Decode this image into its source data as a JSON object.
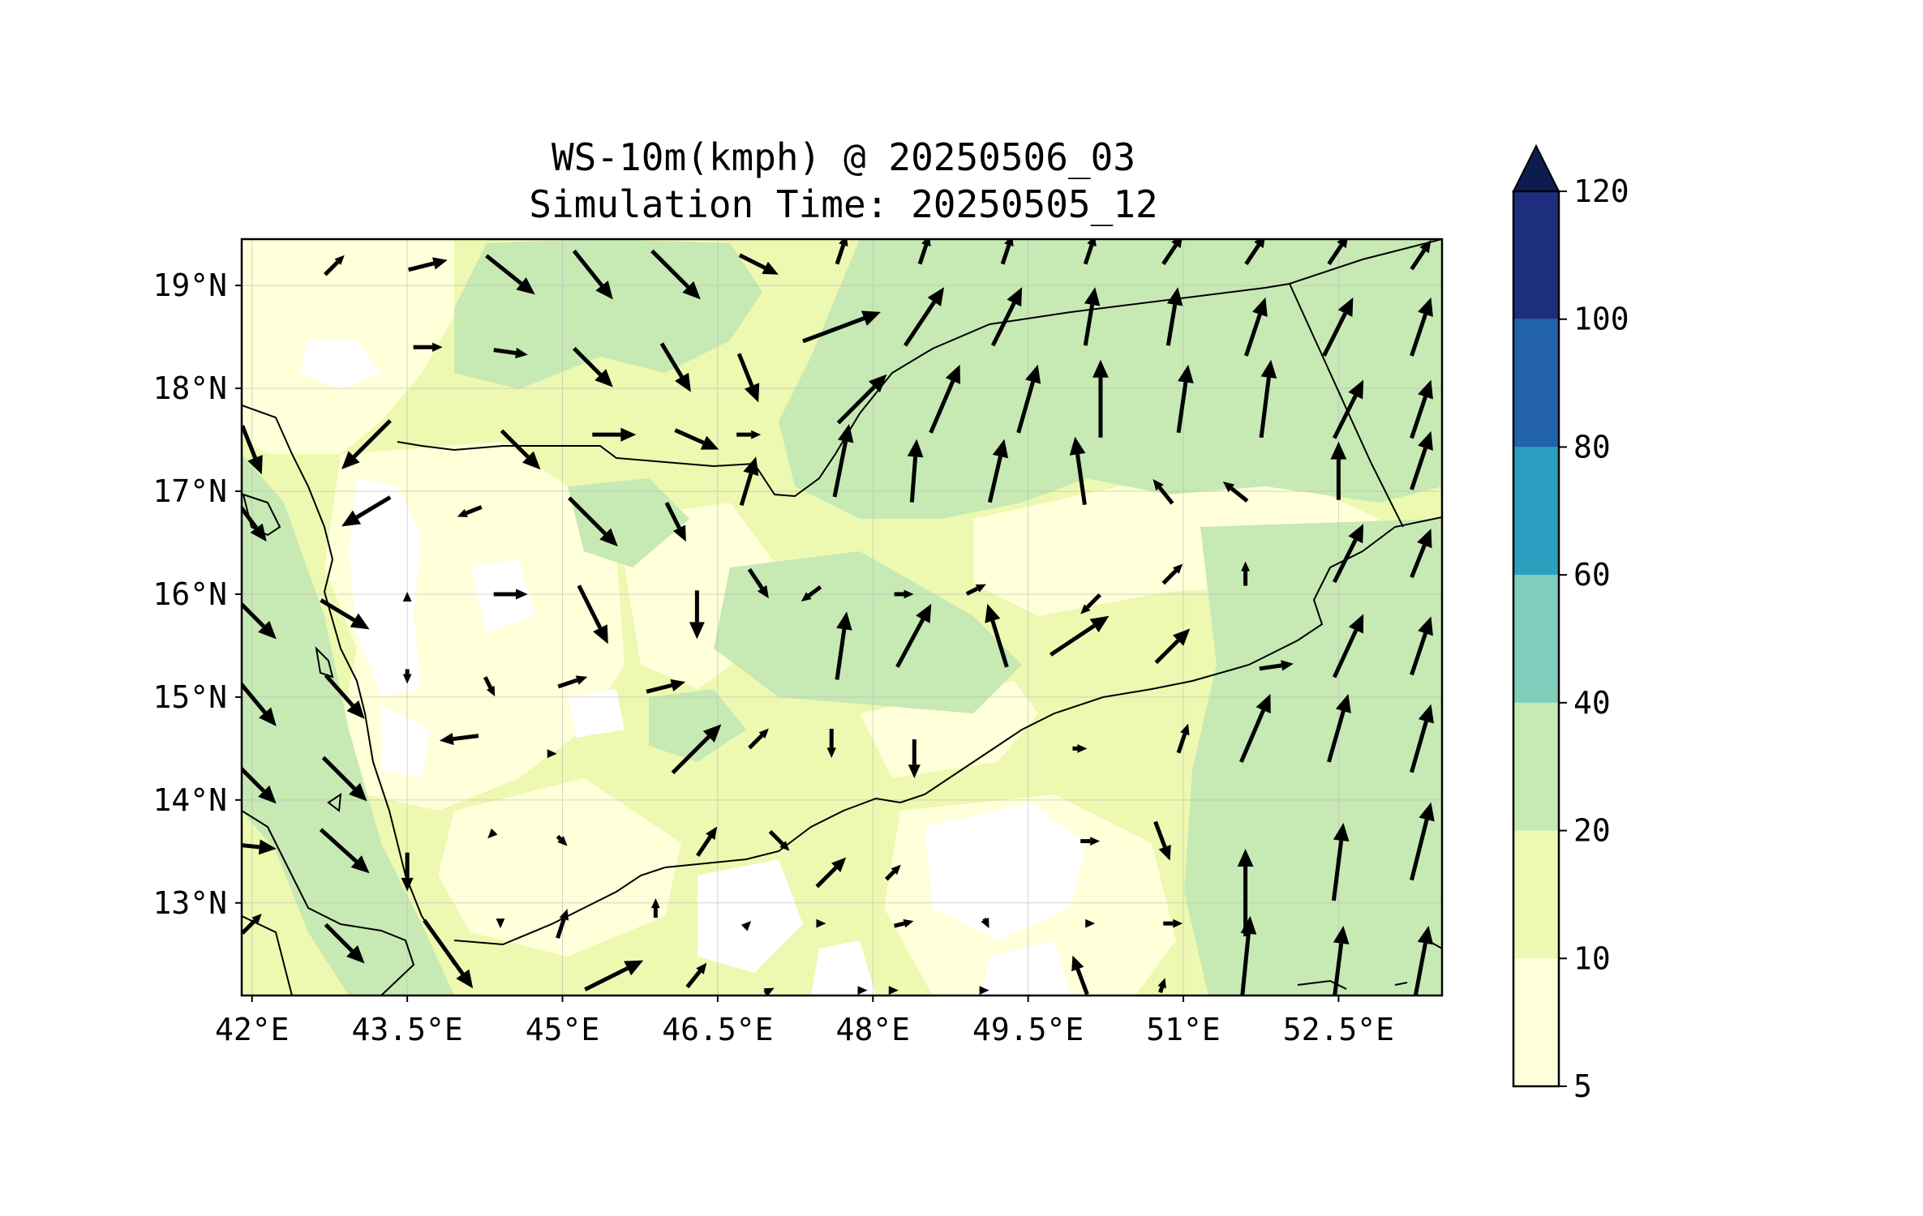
{
  "title": {
    "line1": "WS-10m(kmph) @ 20250506_03",
    "line2": "Simulation Time: 20250505_12"
  },
  "map": {
    "lon_range": [
      41.9,
      53.5
    ],
    "lat_range": [
      12.1,
      19.45
    ],
    "x_ticks": [
      {
        "value": 42.0,
        "label": "42°E"
      },
      {
        "value": 43.5,
        "label": "43.5°E"
      },
      {
        "value": 45.0,
        "label": "45°E"
      },
      {
        "value": 46.5,
        "label": "46.5°E"
      },
      {
        "value": 48.0,
        "label": "48°E"
      },
      {
        "value": 49.5,
        "label": "49.5°E"
      },
      {
        "value": 51.0,
        "label": "51°E"
      },
      {
        "value": 52.5,
        "label": "52.5°E"
      }
    ],
    "y_ticks": [
      {
        "value": 19,
        "label": "19°N"
      },
      {
        "value": 18,
        "label": "18°N"
      },
      {
        "value": 17,
        "label": "17°N"
      },
      {
        "value": 16,
        "label": "16°N"
      },
      {
        "value": 15,
        "label": "15°N"
      },
      {
        "value": 14,
        "label": "14°N"
      },
      {
        "value": 13,
        "label": "13°N"
      }
    ],
    "gridlines": true,
    "colors": {
      "lt10": "#ffffd9",
      "10to20": "#edf8b1",
      "20to40": "#c7e9b4",
      "white": "#ffffff"
    }
  },
  "colorbar": {
    "extend": "max",
    "levels": [
      {
        "from": 5,
        "to": 10,
        "color": "#ffffd9"
      },
      {
        "from": 10,
        "to": 20,
        "color": "#edf8b1"
      },
      {
        "from": 20,
        "to": 40,
        "color": "#c7e9b4"
      },
      {
        "from": 40,
        "to": 60,
        "color": "#7fcdbb"
      },
      {
        "from": 60,
        "to": 80,
        "color": "#2c9fc1"
      },
      {
        "from": 80,
        "to": 100,
        "color": "#2162ab"
      },
      {
        "from": 100,
        "to": 120,
        "color": "#1d2e7f"
      }
    ],
    "extend_color": "#0c1c4e",
    "tick_labels": [
      "5",
      "10",
      "20",
      "40",
      "60",
      "80",
      "100",
      "120"
    ]
  },
  "wind_arrows": [
    {
      "lon": 42.8,
      "lat": 19.2,
      "u": 0.2,
      "v": 0.2
    },
    {
      "lon": 43.7,
      "lat": 19.2,
      "u": 0.4,
      "v": 0.1
    },
    {
      "lon": 44.5,
      "lat": 19.1,
      "u": 0.5,
      "v": -0.4
    },
    {
      "lon": 45.3,
      "lat": 19.1,
      "u": 0.4,
      "v": -0.5
    },
    {
      "lon": 46.1,
      "lat": 19.1,
      "u": 0.5,
      "v": -0.5
    },
    {
      "lon": 46.9,
      "lat": 19.2,
      "u": 0.4,
      "v": -0.2
    },
    {
      "lon": 47.7,
      "lat": 19.35,
      "u": 0.1,
      "v": 0.3
    },
    {
      "lon": 48.5,
      "lat": 19.35,
      "u": 0.1,
      "v": 0.3
    },
    {
      "lon": 49.3,
      "lat": 19.35,
      "u": 0.1,
      "v": 0.3
    },
    {
      "lon": 50.1,
      "lat": 19.35,
      "u": 0.1,
      "v": 0.3
    },
    {
      "lon": 50.9,
      "lat": 19.35,
      "u": 0.2,
      "v": 0.3
    },
    {
      "lon": 51.7,
      "lat": 19.35,
      "u": 0.2,
      "v": 0.3
    },
    {
      "lon": 52.5,
      "lat": 19.35,
      "u": 0.2,
      "v": 0.3
    },
    {
      "lon": 53.3,
      "lat": 19.3,
      "u": 0.2,
      "v": 0.3
    },
    {
      "lon": 43.7,
      "lat": 18.4,
      "u": 0.3,
      "v": 0.0
    },
    {
      "lon": 44.5,
      "lat": 18.35,
      "u": 0.35,
      "v": -0.05
    },
    {
      "lon": 45.3,
      "lat": 18.2,
      "u": 0.4,
      "v": -0.4
    },
    {
      "lon": 46.1,
      "lat": 18.2,
      "u": 0.3,
      "v": -0.5
    },
    {
      "lon": 46.8,
      "lat": 18.1,
      "u": 0.2,
      "v": -0.5
    },
    {
      "lon": 47.7,
      "lat": 18.6,
      "u": 0.8,
      "v": 0.3
    },
    {
      "lon": 48.5,
      "lat": 18.7,
      "u": 0.4,
      "v": 0.6
    },
    {
      "lon": 49.3,
      "lat": 18.7,
      "u": 0.3,
      "v": 0.6
    },
    {
      "lon": 50.1,
      "lat": 18.7,
      "u": 0.1,
      "v": 0.6
    },
    {
      "lon": 50.9,
      "lat": 18.7,
      "u": 0.1,
      "v": 0.6
    },
    {
      "lon": 51.7,
      "lat": 18.6,
      "u": 0.2,
      "v": 0.6
    },
    {
      "lon": 52.5,
      "lat": 18.6,
      "u": 0.3,
      "v": 0.6
    },
    {
      "lon": 53.3,
      "lat": 18.6,
      "u": 0.2,
      "v": 0.6
    },
    {
      "lon": 47.9,
      "lat": 17.9,
      "u": 0.5,
      "v": 0.5
    },
    {
      "lon": 48.7,
      "lat": 17.9,
      "u": 0.3,
      "v": 0.7
    },
    {
      "lon": 49.5,
      "lat": 17.9,
      "u": 0.2,
      "v": 0.7
    },
    {
      "lon": 50.2,
      "lat": 17.9,
      "u": 0.0,
      "v": 0.8
    },
    {
      "lon": 51.0,
      "lat": 17.9,
      "u": 0.1,
      "v": 0.7
    },
    {
      "lon": 51.8,
      "lat": 17.9,
      "u": 0.1,
      "v": 0.8
    },
    {
      "lon": 52.6,
      "lat": 17.8,
      "u": 0.3,
      "v": 0.6
    },
    {
      "lon": 53.3,
      "lat": 17.8,
      "u": 0.2,
      "v": 0.6
    },
    {
      "lon": 42.0,
      "lat": 17.4,
      "u": 0.2,
      "v": -0.5
    },
    {
      "lon": 43.1,
      "lat": 17.45,
      "u": -0.5,
      "v": -0.5
    },
    {
      "lon": 44.6,
      "lat": 17.4,
      "u": 0.4,
      "v": -0.4
    },
    {
      "lon": 45.5,
      "lat": 17.55,
      "u": 0.45,
      "v": 0.0
    },
    {
      "lon": 46.3,
      "lat": 17.5,
      "u": 0.45,
      "v": -0.2
    },
    {
      "lon": 46.8,
      "lat": 17.55,
      "u": 0.25,
      "v": 0.0
    },
    {
      "lon": 42.0,
      "lat": 16.7,
      "u": 0.3,
      "v": -0.4
    },
    {
      "lon": 43.1,
      "lat": 16.8,
      "u": -0.5,
      "v": -0.3
    },
    {
      "lon": 44.1,
      "lat": 16.8,
      "u": -0.25,
      "v": -0.1
    },
    {
      "lon": 45.3,
      "lat": 16.7,
      "u": 0.5,
      "v": -0.5
    },
    {
      "lon": 46.1,
      "lat": 16.7,
      "u": 0.2,
      "v": -0.4
    },
    {
      "lon": 46.8,
      "lat": 17.1,
      "u": 0.15,
      "v": 0.5
    },
    {
      "lon": 47.7,
      "lat": 17.3,
      "u": 0.15,
      "v": 0.75
    },
    {
      "lon": 48.4,
      "lat": 17.2,
      "u": 0.05,
      "v": 0.65
    },
    {
      "lon": 49.2,
      "lat": 17.2,
      "u": 0.15,
      "v": 0.65
    },
    {
      "lon": 50.0,
      "lat": 17.2,
      "u": -0.1,
      "v": 0.7
    },
    {
      "lon": 50.8,
      "lat": 17.0,
      "u": -0.2,
      "v": 0.25
    },
    {
      "lon": 51.5,
      "lat": 17.0,
      "u": -0.25,
      "v": 0.2
    },
    {
      "lon": 52.5,
      "lat": 17.2,
      "u": 0.0,
      "v": 0.6
    },
    {
      "lon": 53.3,
      "lat": 17.3,
      "u": 0.2,
      "v": 0.6
    },
    {
      "lon": 42.0,
      "lat": 15.8,
      "u": 0.5,
      "v": -0.5
    },
    {
      "lon": 42.9,
      "lat": 15.8,
      "u": 0.5,
      "v": -0.3
    },
    {
      "lon": 43.5,
      "lat": 16.0,
      "u": 0.0,
      "v": 0.05
    },
    {
      "lon": 44.5,
      "lat": 16.0,
      "u": 0.35,
      "v": 0.0
    },
    {
      "lon": 45.3,
      "lat": 15.8,
      "u": 0.3,
      "v": -0.6
    },
    {
      "lon": 46.3,
      "lat": 15.8,
      "u": 0.0,
      "v": -0.5
    },
    {
      "lon": 46.9,
      "lat": 16.1,
      "u": 0.2,
      "v": -0.3
    },
    {
      "lon": 47.7,
      "lat": 15.5,
      "u": 0.1,
      "v": 0.7
    },
    {
      "lon": 48.4,
      "lat": 15.6,
      "u": 0.35,
      "v": 0.65
    },
    {
      "lon": 49.2,
      "lat": 15.6,
      "u": -0.2,
      "v": 0.65
    },
    {
      "lon": 50.0,
      "lat": 15.6,
      "u": 0.6,
      "v": 0.4
    },
    {
      "lon": 50.9,
      "lat": 15.5,
      "u": 0.35,
      "v": 0.35
    },
    {
      "lon": 51.9,
      "lat": 15.3,
      "u": 0.35,
      "v": 0.05
    },
    {
      "lon": 52.6,
      "lat": 15.5,
      "u": 0.3,
      "v": 0.65
    },
    {
      "lon": 53.3,
      "lat": 15.5,
      "u": 0.2,
      "v": 0.6
    },
    {
      "lon": 47.4,
      "lat": 16.0,
      "u": -0.2,
      "v": -0.15
    },
    {
      "lon": 48.3,
      "lat": 16.0,
      "u": 0.2,
      "v": 0.0
    },
    {
      "lon": 49.0,
      "lat": 16.05,
      "u": 0.2,
      "v": 0.1
    },
    {
      "lon": 50.1,
      "lat": 15.9,
      "u": -0.2,
      "v": -0.2
    },
    {
      "lon": 50.9,
      "lat": 16.2,
      "u": 0.2,
      "v": 0.2
    },
    {
      "lon": 51.6,
      "lat": 16.2,
      "u": 0.0,
      "v": 0.25
    },
    {
      "lon": 52.6,
      "lat": 16.4,
      "u": 0.3,
      "v": 0.6
    },
    {
      "lon": 53.3,
      "lat": 16.4,
      "u": 0.2,
      "v": 0.5
    },
    {
      "lon": 42.0,
      "lat": 15.0,
      "u": 0.5,
      "v": -0.6
    },
    {
      "lon": 42.9,
      "lat": 15.0,
      "u": 0.4,
      "v": -0.45
    },
    {
      "lon": 43.5,
      "lat": 15.2,
      "u": 0.0,
      "v": -0.15
    },
    {
      "lon": 44.0,
      "lat": 14.6,
      "u": -0.4,
      "v": -0.05
    },
    {
      "lon": 44.3,
      "lat": 15.1,
      "u": 0.1,
      "v": -0.2
    },
    {
      "lon": 45.1,
      "lat": 15.15,
      "u": 0.3,
      "v": 0.1
    },
    {
      "lon": 46.0,
      "lat": 15.1,
      "u": 0.4,
      "v": 0.1
    },
    {
      "lon": 46.3,
      "lat": 14.5,
      "u": 0.5,
      "v": 0.5
    },
    {
      "lon": 46.9,
      "lat": 14.6,
      "u": 0.2,
      "v": 0.2
    },
    {
      "lon": 47.6,
      "lat": 14.55,
      "u": 0.0,
      "v": -0.3
    },
    {
      "lon": 48.4,
      "lat": 14.4,
      "u": 0.0,
      "v": -0.4
    },
    {
      "lon": 50.0,
      "lat": 14.5,
      "u": 0.15,
      "v": 0.0
    },
    {
      "lon": 51.0,
      "lat": 14.6,
      "u": 0.1,
      "v": 0.3
    },
    {
      "lon": 51.7,
      "lat": 14.7,
      "u": 0.3,
      "v": 0.7
    },
    {
      "lon": 52.5,
      "lat": 14.7,
      "u": 0.2,
      "v": 0.7
    },
    {
      "lon": 53.3,
      "lat": 14.6,
      "u": 0.2,
      "v": 0.7
    },
    {
      "lon": 42.0,
      "lat": 14.2,
      "u": 0.5,
      "v": -0.5
    },
    {
      "lon": 42.9,
      "lat": 14.2,
      "u": 0.45,
      "v": -0.45
    },
    {
      "lon": 44.9,
      "lat": 14.45,
      "u": 0.1,
      "v": 0.0
    },
    {
      "lon": 42.0,
      "lat": 13.55,
      "u": 0.5,
      "v": -0.05
    },
    {
      "lon": 42.9,
      "lat": 13.5,
      "u": 0.5,
      "v": -0.45
    },
    {
      "lon": 43.5,
      "lat": 13.3,
      "u": 0.0,
      "v": -0.4
    },
    {
      "lon": 44.3,
      "lat": 13.65,
      "u": -0.05,
      "v": -0.05
    },
    {
      "lon": 45.0,
      "lat": 13.6,
      "u": 0.1,
      "v": -0.1
    },
    {
      "lon": 46.4,
      "lat": 13.6,
      "u": 0.2,
      "v": 0.3
    },
    {
      "lon": 47.1,
      "lat": 13.6,
      "u": 0.2,
      "v": -0.2
    },
    {
      "lon": 47.6,
      "lat": 13.3,
      "u": 0.3,
      "v": 0.3
    },
    {
      "lon": 48.2,
      "lat": 13.3,
      "u": 0.15,
      "v": 0.15
    },
    {
      "lon": 50.1,
      "lat": 13.6,
      "u": 0.2,
      "v": 0.0
    },
    {
      "lon": 50.8,
      "lat": 13.6,
      "u": 0.15,
      "v": -0.4
    },
    {
      "lon": 51.6,
      "lat": 13.1,
      "u": 0.0,
      "v": 0.9
    },
    {
      "lon": 52.5,
      "lat": 13.4,
      "u": 0.1,
      "v": 0.8
    },
    {
      "lon": 53.3,
      "lat": 13.6,
      "u": 0.2,
      "v": 0.8
    },
    {
      "lon": 42.0,
      "lat": 12.8,
      "u": 0.2,
      "v": 0.2
    },
    {
      "lon": 42.9,
      "lat": 12.6,
      "u": 0.4,
      "v": -0.4
    },
    {
      "lon": 43.9,
      "lat": 12.5,
      "u": 0.5,
      "v": -0.7
    },
    {
      "lon": 44.4,
      "lat": 12.8,
      "u": 0.0,
      "v": -0.1
    },
    {
      "lon": 45.0,
      "lat": 12.8,
      "u": 0.1,
      "v": 0.3
    },
    {
      "lon": 45.9,
      "lat": 12.95,
      "u": 0.0,
      "v": 0.2
    },
    {
      "lon": 46.8,
      "lat": 12.8,
      "u": 0.05,
      "v": 0.05
    },
    {
      "lon": 47.5,
      "lat": 12.8,
      "u": 0.1,
      "v": 0.0
    },
    {
      "lon": 48.3,
      "lat": 12.8,
      "u": 0.2,
      "v": 0.05
    },
    {
      "lon": 49.1,
      "lat": 12.8,
      "u": 0.05,
      "v": -0.1
    },
    {
      "lon": 50.1,
      "lat": 12.8,
      "u": 0.1,
      "v": 0.0
    },
    {
      "lon": 50.9,
      "lat": 12.8,
      "u": 0.2,
      "v": 0.0
    },
    {
      "lon": 51.6,
      "lat": 12.4,
      "u": 0.1,
      "v": 1.0
    },
    {
      "lon": 52.5,
      "lat": 12.4,
      "u": 0.1,
      "v": 0.8
    },
    {
      "lon": 53.3,
      "lat": 12.4,
      "u": 0.15,
      "v": 0.8
    },
    {
      "lon": 45.5,
      "lat": 12.3,
      "u": 0.6,
      "v": 0.3
    },
    {
      "lon": 46.3,
      "lat": 12.3,
      "u": 0.2,
      "v": 0.25
    },
    {
      "lon": 47.0,
      "lat": 12.15,
      "u": 0.1,
      "v": 0.05
    },
    {
      "lon": 47.9,
      "lat": 12.15,
      "u": 0.1,
      "v": 0.0
    },
    {
      "lon": 48.2,
      "lat": 12.15,
      "u": 0.1,
      "v": 0.0
    },
    {
      "lon": 49.1,
      "lat": 12.15,
      "u": 0.05,
      "v": 0.0
    },
    {
      "lon": 50.0,
      "lat": 12.3,
      "u": -0.15,
      "v": 0.4
    },
    {
      "lon": 50.8,
      "lat": 12.2,
      "u": 0.05,
      "v": 0.15
    }
  ]
}
